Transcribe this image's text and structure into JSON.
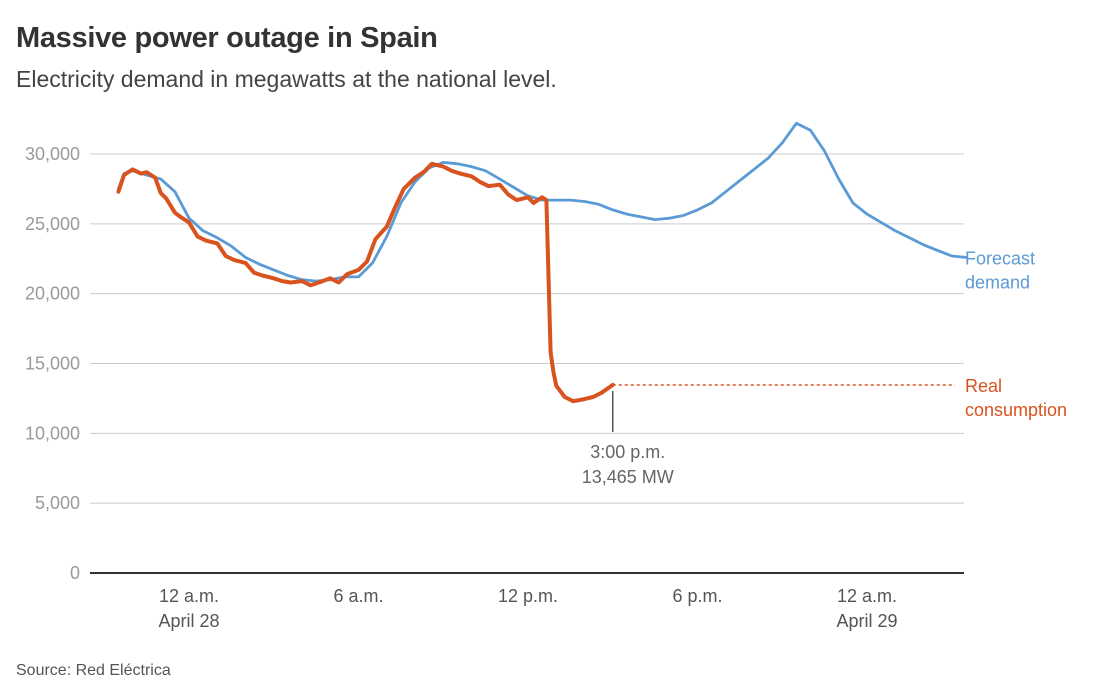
{
  "header": {
    "title": "Massive power outage in Spain",
    "subtitle": "Electricity demand in megawatts at the national level."
  },
  "footer": {
    "source": "Source: Red Eléctrica"
  },
  "colors": {
    "forecast": "#5b9bd5",
    "real": "#d9531e",
    "grid": "#cccccc",
    "axis": "#333333"
  },
  "chart_data": {
    "type": "line",
    "title": "Massive power outage in Spain",
    "subtitle": "Electricity demand in megawatts at the national level.",
    "xlabel": "",
    "ylabel": "",
    "x_unit": "hours relative to 12 a.m. April 28",
    "xlim": [
      -2.7,
      28.3
    ],
    "ylim": [
      0,
      30000
    ],
    "y_ticks": [
      {
        "value": 0,
        "label": "0"
      },
      {
        "value": 5000,
        "label": "5,000"
      },
      {
        "value": 10000,
        "label": "10,000"
      },
      {
        "value": 15000,
        "label": "15,000"
      },
      {
        "value": 20000,
        "label": "20,000"
      },
      {
        "value": 25000,
        "label": "25,000"
      },
      {
        "value": 30000,
        "label": "30,000"
      }
    ],
    "x_ticks": [
      {
        "value": 0,
        "line1": "12 a.m.",
        "line2": "April 28"
      },
      {
        "value": 6,
        "line1": "6 a.m.",
        "line2": ""
      },
      {
        "value": 12,
        "line1": "12 p.m.",
        "line2": ""
      },
      {
        "value": 18,
        "line1": "6 p.m.",
        "line2": ""
      },
      {
        "value": 24,
        "line1": "12 a.m.",
        "line2": "April 29"
      }
    ],
    "grid": true,
    "legend": "direct labels at right end of lines",
    "series": [
      {
        "name": "Forecast demand",
        "label_lines": [
          "Forecast",
          "demand"
        ],
        "x": [
          -2.5,
          -2.3,
          -2.0,
          -1.5,
          -1.0,
          -0.5,
          0,
          0.5,
          1,
          1.5,
          2,
          2.5,
          3,
          3.5,
          4,
          4.5,
          5,
          5.5,
          6,
          6.5,
          7,
          7.5,
          8,
          8.5,
          9,
          9.5,
          10,
          10.5,
          11,
          11.5,
          12,
          12.5,
          13,
          13.5,
          14,
          14.5,
          15,
          15.5,
          16,
          16.5,
          17,
          17.5,
          18,
          18.5,
          19,
          19.5,
          20,
          20.5,
          21,
          21.5,
          22,
          22.5,
          23,
          23.5,
          24,
          24.5,
          25,
          25.5,
          26,
          26.5,
          27,
          27.5
        ],
        "y": [
          27500,
          28600,
          28800,
          28500,
          28200,
          27300,
          25400,
          24500,
          24000,
          23400,
          22600,
          22100,
          21700,
          21300,
          21000,
          20900,
          21000,
          21200,
          21200,
          22200,
          24100,
          26500,
          28000,
          29000,
          29400,
          29300,
          29100,
          28800,
          28200,
          27600,
          27000,
          26700,
          26700,
          26700,
          26600,
          26400,
          26000,
          25700,
          25500,
          25300,
          25400,
          25600,
          26000,
          26500,
          27300,
          28100,
          28900,
          29700,
          30800,
          32200,
          31700,
          30200,
          28200,
          26500,
          25700,
          25100,
          24500,
          24000,
          23500,
          23100,
          22700,
          22600
        ]
      },
      {
        "name": "Real consumption",
        "label_lines": [
          "Real",
          "consumption"
        ],
        "x": [
          -2.5,
          -2.3,
          -2.0,
          -1.7,
          -1.5,
          -1.2,
          -1.0,
          -0.8,
          -0.5,
          -0.3,
          0,
          0.3,
          0.6,
          1.0,
          1.3,
          1.6,
          2.0,
          2.3,
          2.6,
          3.0,
          3.3,
          3.6,
          4.0,
          4.3,
          4.6,
          5.0,
          5.3,
          5.6,
          6.0,
          6.3,
          6.6,
          7.0,
          7.3,
          7.6,
          8.0,
          8.3,
          8.6,
          9.0,
          9.3,
          9.6,
          10.0,
          10.3,
          10.6,
          11.0,
          11.3,
          11.6,
          12.0,
          12.2,
          12.5,
          12.65,
          12.8,
          12.9,
          13.0,
          13.3,
          13.6,
          14.0,
          14.3,
          14.6,
          15.0
        ],
        "y": [
          27300,
          28500,
          28900,
          28600,
          28700,
          28300,
          27200,
          26800,
          25800,
          25500,
          25100,
          24100,
          23800,
          23600,
          22700,
          22400,
          22200,
          21500,
          21300,
          21100,
          20900,
          20800,
          20900,
          20600,
          20800,
          21100,
          20800,
          21400,
          21700,
          22300,
          23900,
          24800,
          26200,
          27500,
          28300,
          28700,
          29300,
          29100,
          28800,
          28600,
          28400,
          28000,
          27700,
          27800,
          27100,
          26700,
          26900,
          26500,
          26900,
          26700,
          15800,
          14400,
          13400,
          12600,
          12300,
          12450,
          12600,
          12900,
          13465
        ]
      }
    ],
    "annotation": {
      "x": 15,
      "y": 13465,
      "line1": "3:00 p.m.",
      "line2": "13,465 MW"
    }
  }
}
